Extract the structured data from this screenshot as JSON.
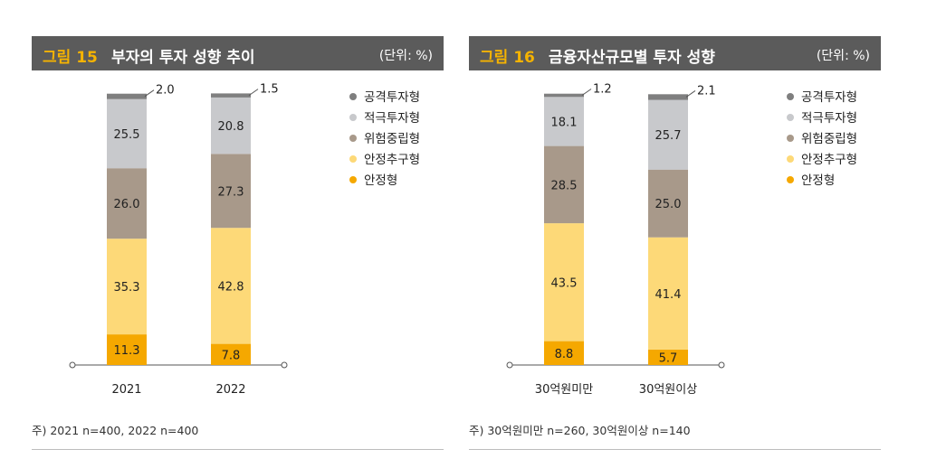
{
  "chart_data": [
    {
      "type": "bar",
      "stacked": true,
      "figure_label": "그림 15",
      "title": "부자의 투자 성향 추이",
      "unit_label": "(단위: %)",
      "categories": [
        "2021",
        "2022"
      ],
      "series": [
        {
          "name": "안정형",
          "values": [
            11.3,
            7.8
          ],
          "color": "#f5a800"
        },
        {
          "name": "안정추구형",
          "values": [
            35.3,
            42.8
          ],
          "color": "#fdd978"
        },
        {
          "name": "위험중립형",
          "values": [
            26.0,
            27.3
          ],
          "color": "#a8998a"
        },
        {
          "name": "적극투자형",
          "values": [
            25.5,
            20.8
          ],
          "color": "#c8c9cc"
        },
        {
          "name": "공격투자형",
          "values": [
            2.0,
            1.5
          ],
          "color": "#7f7f7f"
        }
      ],
      "value_labels": [
        [
          "11.3",
          "35.3",
          "26.0",
          "25.5",
          "2.0"
        ],
        [
          "7.8",
          "42.8",
          "27.3",
          "20.8",
          "1.5"
        ]
      ],
      "legend": [
        "공격투자형",
        "적극투자형",
        "위험중립형",
        "안정추구형",
        "안정형"
      ],
      "legend_position": "right",
      "ylim": [
        0,
        100
      ],
      "note": "주) 2021 n=400, 2022 n=400"
    },
    {
      "type": "bar",
      "stacked": true,
      "figure_label": "그림 16",
      "title": "금융자산규모별 투자 성향",
      "unit_label": "(단위: %)",
      "categories": [
        "30억원미만",
        "30억원이상"
      ],
      "series": [
        {
          "name": "안정형",
          "values": [
            8.8,
            5.7
          ],
          "color": "#f5a800"
        },
        {
          "name": "안정추구형",
          "values": [
            43.5,
            41.4
          ],
          "color": "#fdd978"
        },
        {
          "name": "위험중립형",
          "values": [
            28.5,
            25.0
          ],
          "color": "#a8998a"
        },
        {
          "name": "적극투자형",
          "values": [
            18.1,
            25.7
          ],
          "color": "#c8c9cc"
        },
        {
          "name": "공격투자형",
          "values": [
            1.2,
            2.1
          ],
          "color": "#7f7f7f"
        }
      ],
      "value_labels": [
        [
          "8.8",
          "43.5",
          "28.5",
          "18.1",
          "1.2"
        ],
        [
          "5.7",
          "41.4",
          "25.0",
          "25.7",
          "2.1"
        ]
      ],
      "legend": [
        "공격투자형",
        "적극투자형",
        "위험중립형",
        "안정추구형",
        "안정형"
      ],
      "legend_position": "right",
      "ylim": [
        0,
        100
      ],
      "note": "주) 30억원미만 n=260, 30억원이상 n=140"
    }
  ]
}
